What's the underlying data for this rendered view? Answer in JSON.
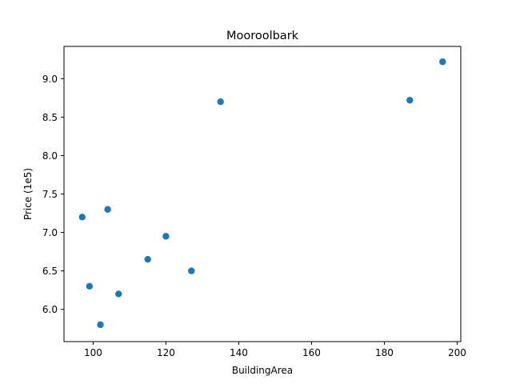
{
  "chart_data": {
    "type": "scatter",
    "title": "Mooroolbark",
    "xlabel": "BuildingArea",
    "ylabel": "Price (1e5)",
    "xlim": [
      92,
      201
    ],
    "ylim": [
      5.58,
      9.42
    ],
    "xticks": [
      100,
      120,
      140,
      160,
      180,
      200
    ],
    "yticks": [
      6.0,
      6.5,
      7.0,
      7.5,
      8.0,
      8.5,
      9.0
    ],
    "grid": false,
    "color": "#1f77b4",
    "points": [
      {
        "x": 97,
        "y": 7.2
      },
      {
        "x": 99,
        "y": 6.3
      },
      {
        "x": 102,
        "y": 5.8
      },
      {
        "x": 104,
        "y": 7.3
      },
      {
        "x": 107,
        "y": 6.2
      },
      {
        "x": 115,
        "y": 6.65
      },
      {
        "x": 120,
        "y": 6.95
      },
      {
        "x": 127,
        "y": 6.5
      },
      {
        "x": 135,
        "y": 8.7
      },
      {
        "x": 187,
        "y": 8.72
      },
      {
        "x": 196,
        "y": 9.22
      }
    ]
  }
}
